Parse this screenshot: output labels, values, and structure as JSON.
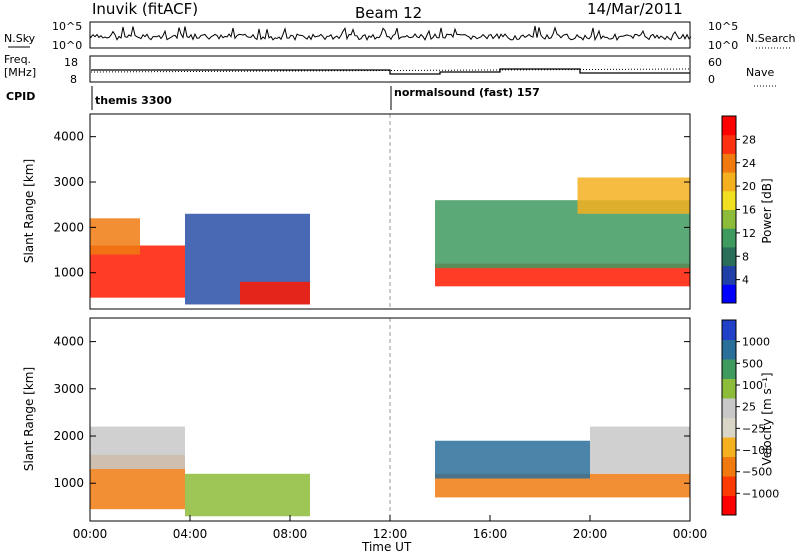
{
  "header": {
    "station": "Inuvik (fitACF)",
    "beam": "Beam 12",
    "date": "14/Mar/2011"
  },
  "top_panels": {
    "nsky_label": "N.Sky",
    "nsearch_label": "N.Search",
    "nsky_ticks": [
      "10^5",
      "10^0"
    ],
    "nsearch_ticks": [
      "10^5",
      "10^0"
    ],
    "freq_label_line1": "Freq.",
    "freq_label_line2": "[MHz]",
    "freq_ticks": [
      "18",
      "8"
    ],
    "nave_label": "Nave",
    "nave_ticks": [
      "60",
      "0"
    ],
    "cpid_label": "CPID",
    "cpid_segments": [
      {
        "label": "themis 3300",
        "start_hour": 0
      },
      {
        "label": "normalsound (fast) 157",
        "start_hour": 12
      }
    ]
  },
  "chart_data": [
    {
      "type": "heatmap",
      "name": "power-panel",
      "ylabel": "Slant Range [km]",
      "xlabel": "",
      "ylim": [
        200,
        4500
      ],
      "yticks": [
        1000,
        2000,
        3000,
        4000
      ],
      "xlim": [
        0,
        24
      ],
      "colorbar_label": "Power [dB]",
      "colorbar_ticks": [
        "28",
        "24",
        "20",
        "16",
        "12",
        "8",
        "4"
      ],
      "colorbar_colors": [
        "#0000ff",
        "#2040a8",
        "#2a6e5a",
        "#3f9a60",
        "#8cbc3a",
        "#f0e020",
        "#f5b020",
        "#f07a10",
        "#ff3010",
        "#ff0000"
      ],
      "regions": [
        {
          "t0": 0.0,
          "t1": 3.8,
          "r0": 450,
          "r1": 1600,
          "value": "high",
          "color": "#ff1a00"
        },
        {
          "t0": 0.0,
          "t1": 2.0,
          "r0": 1400,
          "r1": 2200,
          "value": "mid",
          "color": "#f07a10"
        },
        {
          "t0": 3.8,
          "t1": 8.8,
          "r0": 300,
          "r1": 2300,
          "value": "low",
          "color": "#2a4fa8"
        },
        {
          "t0": 6.0,
          "t1": 8.8,
          "r0": 300,
          "r1": 800,
          "value": "high",
          "color": "#ff1a00"
        },
        {
          "t0": 13.8,
          "t1": 24.0,
          "r0": 700,
          "r1": 1200,
          "value": "high",
          "color": "#ff1a00"
        },
        {
          "t0": 13.8,
          "t1": 24.0,
          "r0": 1100,
          "r1": 2600,
          "value": "mid",
          "color": "#3f9a60"
        },
        {
          "t0": 19.5,
          "t1": 24.0,
          "r0": 2300,
          "r1": 3100,
          "value": "mid",
          "color": "#f5b020"
        }
      ]
    },
    {
      "type": "heatmap",
      "name": "velocity-panel",
      "ylabel": "Slant Range [km]",
      "xlabel": "Time UT",
      "ylim": [
        200,
        4500
      ],
      "yticks": [
        1000,
        2000,
        3000,
        4000
      ],
      "xlim": [
        0,
        24
      ],
      "xticks": [
        "00:00",
        "04:00",
        "08:00",
        "12:00",
        "16:00",
        "20:00",
        "00:00"
      ],
      "colorbar_label": "Velocity [m s⁻¹]",
      "colorbar_ticks": [
        "1000",
        "500",
        "100",
        "25",
        "−25",
        "−100",
        "−500",
        "−1000"
      ],
      "colorbar_colors": [
        "#ff0000",
        "#ff3a00",
        "#f07a10",
        "#f5b020",
        "#d9d6c8",
        "#c8c8c8",
        "#8cbc3a",
        "#3f9a60",
        "#2a6e9a",
        "#2040c8"
      ],
      "regions": [
        {
          "t0": 0.0,
          "t1": 3.8,
          "r0": 450,
          "r1": 1600,
          "value": "toward",
          "color": "#f07a10"
        },
        {
          "t0": 0.0,
          "t1": 3.8,
          "r0": 1300,
          "r1": 2200,
          "value": "ground",
          "color": "#c8c8c8"
        },
        {
          "t0": 3.8,
          "t1": 8.8,
          "r0": 300,
          "r1": 1200,
          "value": "mixed",
          "color": "#8cbc3a"
        },
        {
          "t0": 13.8,
          "t1": 24.0,
          "r0": 700,
          "r1": 1200,
          "value": "toward",
          "color": "#f07a10"
        },
        {
          "t0": 13.8,
          "t1": 20.0,
          "r0": 1100,
          "r1": 1900,
          "value": "away",
          "color": "#2a6e9a"
        },
        {
          "t0": 20.0,
          "t1": 24.0,
          "r0": 1200,
          "r1": 2200,
          "value": "ground",
          "color": "#c8c8c8"
        }
      ]
    }
  ]
}
